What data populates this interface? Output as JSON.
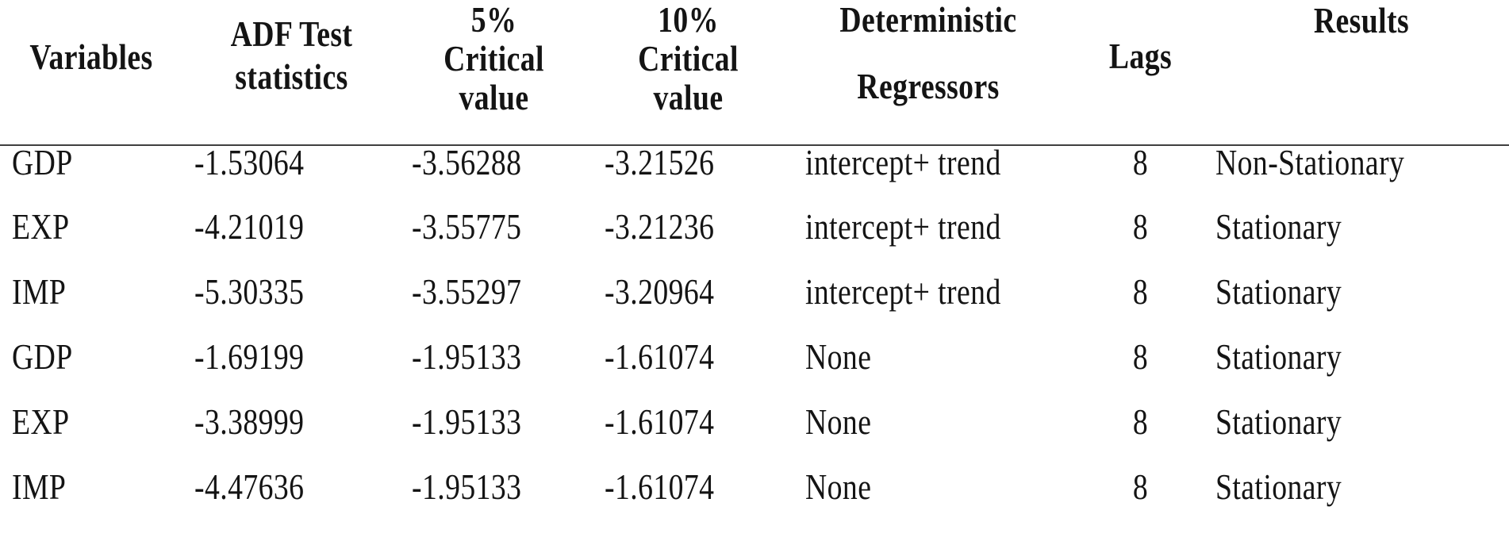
{
  "page": {
    "background": "#ffffff",
    "text_color": "#141414",
    "header_rule_color": "#3f3f3f"
  },
  "table": {
    "headers": {
      "variables": {
        "lines": [
          "Variables"
        ]
      },
      "adf": {
        "lines": [
          "ADF Test",
          "statistics"
        ]
      },
      "cv5": {
        "lines": [
          "5%",
          "Critical",
          "value"
        ]
      },
      "cv10": {
        "lines": [
          "10%",
          "Critical",
          "value"
        ]
      },
      "regressors": {
        "lines": [
          "Deterministic",
          "Regressors"
        ]
      },
      "lags": {
        "lines": [
          "Lags"
        ]
      },
      "results": {
        "lines": [
          "Results"
        ]
      }
    },
    "rows": [
      {
        "variable": "GDP",
        "adf_stat": "-1.53064",
        "cv5": "-3.56288",
        "cv10": "-3.21526",
        "regressors": "intercept+ trend",
        "lags": "8",
        "result": "Non-Stationary"
      },
      {
        "variable": "EXP",
        "adf_stat": "-4.21019",
        "cv5": "-3.55775",
        "cv10": "-3.21236",
        "regressors": "intercept+ trend",
        "lags": "8",
        "result": "Stationary"
      },
      {
        "variable": "IMP",
        "adf_stat": "-5.30335",
        "cv5": "-3.55297",
        "cv10": "-3.20964",
        "regressors": "intercept+ trend",
        "lags": "8",
        "result": "Stationary"
      },
      {
        "variable": "GDP",
        "adf_stat": "-1.69199",
        "cv5": "-1.95133",
        "cv10": "-1.61074",
        "regressors": "None",
        "lags": "8",
        "result": "Stationary"
      },
      {
        "variable": "EXP",
        "adf_stat": "-3.38999",
        "cv5": "-1.95133",
        "cv10": "-1.61074",
        "regressors": "None",
        "lags": "8",
        "result": "Stationary"
      },
      {
        "variable": "IMP",
        "adf_stat": "-4.47636",
        "cv5": "-1.95133",
        "cv10": "-1.61074",
        "regressors": "None",
        "lags": "8",
        "result": "Stationary"
      }
    ]
  }
}
